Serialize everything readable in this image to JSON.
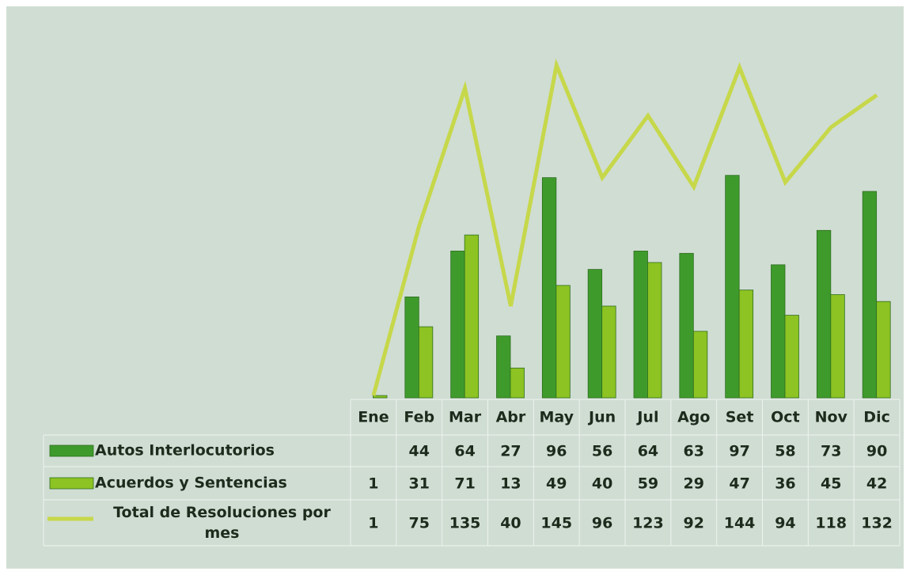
{
  "chart_data": {
    "type": "bar-line",
    "categories": [
      "Ene",
      "Feb",
      "Mar",
      "Abr",
      "May",
      "Jun",
      "Jul",
      "Ago",
      "Set",
      "Oct",
      "Nov",
      "Dic"
    ],
    "series": [
      {
        "name": "Autos Interlocutorios",
        "color": "#3f9a2c",
        "kind": "bar",
        "values": [
          null,
          44,
          64,
          27,
          96,
          56,
          64,
          63,
          97,
          58,
          73,
          90
        ]
      },
      {
        "name": "Acuerdos y Sentencias",
        "color": "#8dc322",
        "kind": "bar",
        "values": [
          1,
          31,
          71,
          13,
          49,
          40,
          59,
          29,
          47,
          36,
          45,
          42
        ]
      },
      {
        "name": "Total de Resoluciones por mes",
        "color": "#c6d84a",
        "kind": "line",
        "values": [
          1,
          75,
          135,
          40,
          145,
          96,
          123,
          92,
          144,
          94,
          118,
          132
        ]
      }
    ],
    "ylim": [
      0,
      150
    ]
  }
}
